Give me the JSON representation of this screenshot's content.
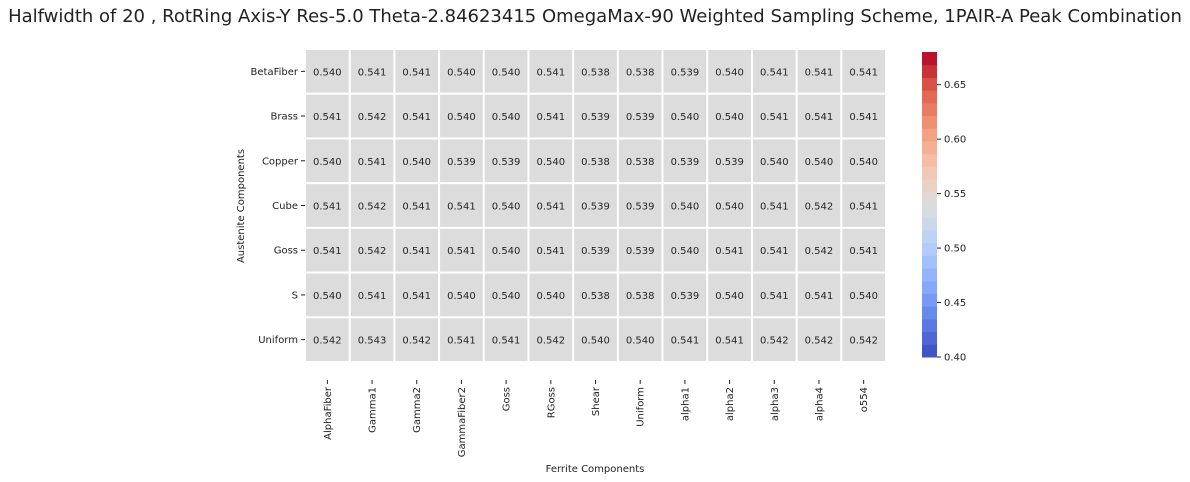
{
  "chart_data": {
    "type": "heatmap",
    "title": "Halfwidth of 20 , RotRing Axis-Y Res-5.0 Theta-2.84623415 OmegaMax-90 Weighted Sampling Scheme, 1PAIR-A Peak Combination",
    "xlabel": "Ferrite Components",
    "ylabel": "Austenite Components",
    "x_categories": [
      "AlphaFiber",
      "Gamma1",
      "Gamma2",
      "GammaFiber2",
      "Goss",
      "RGoss",
      "Shear",
      "Uniform",
      "alpha1",
      "alpha2",
      "alpha3",
      "alpha4",
      "o554"
    ],
    "y_categories": [
      "BetaFiber",
      "Brass",
      "Copper",
      "Cube",
      "Goss",
      "S",
      "Uniform"
    ],
    "values": [
      [
        0.54,
        0.541,
        0.541,
        0.54,
        0.54,
        0.541,
        0.538,
        0.538,
        0.539,
        0.54,
        0.541,
        0.541,
        0.541
      ],
      [
        0.541,
        0.542,
        0.541,
        0.54,
        0.54,
        0.541,
        0.539,
        0.539,
        0.54,
        0.54,
        0.541,
        0.541,
        0.541
      ],
      [
        0.54,
        0.541,
        0.54,
        0.539,
        0.539,
        0.54,
        0.538,
        0.538,
        0.539,
        0.539,
        0.54,
        0.54,
        0.54
      ],
      [
        0.541,
        0.542,
        0.541,
        0.541,
        0.54,
        0.541,
        0.539,
        0.539,
        0.54,
        0.54,
        0.541,
        0.542,
        0.541
      ],
      [
        0.541,
        0.542,
        0.541,
        0.541,
        0.54,
        0.541,
        0.539,
        0.539,
        0.54,
        0.541,
        0.541,
        0.542,
        0.541
      ],
      [
        0.54,
        0.541,
        0.541,
        0.54,
        0.54,
        0.54,
        0.538,
        0.538,
        0.539,
        0.54,
        0.541,
        0.541,
        0.54
      ],
      [
        0.542,
        0.543,
        0.542,
        0.541,
        0.541,
        0.542,
        0.54,
        0.54,
        0.541,
        0.541,
        0.542,
        0.542,
        0.542
      ]
    ],
    "value_format": "3 decimals",
    "colorbar": {
      "colormap": "coolwarm",
      "range": [
        0.4,
        0.68
      ],
      "ticks": [
        "0.40",
        "0.45",
        "0.50",
        "0.55",
        "0.60",
        "0.65"
      ],
      "levels": 24
    },
    "cell_color": "#dcdcdc",
    "cell_gap_color": "#ffffff",
    "grid": false
  }
}
